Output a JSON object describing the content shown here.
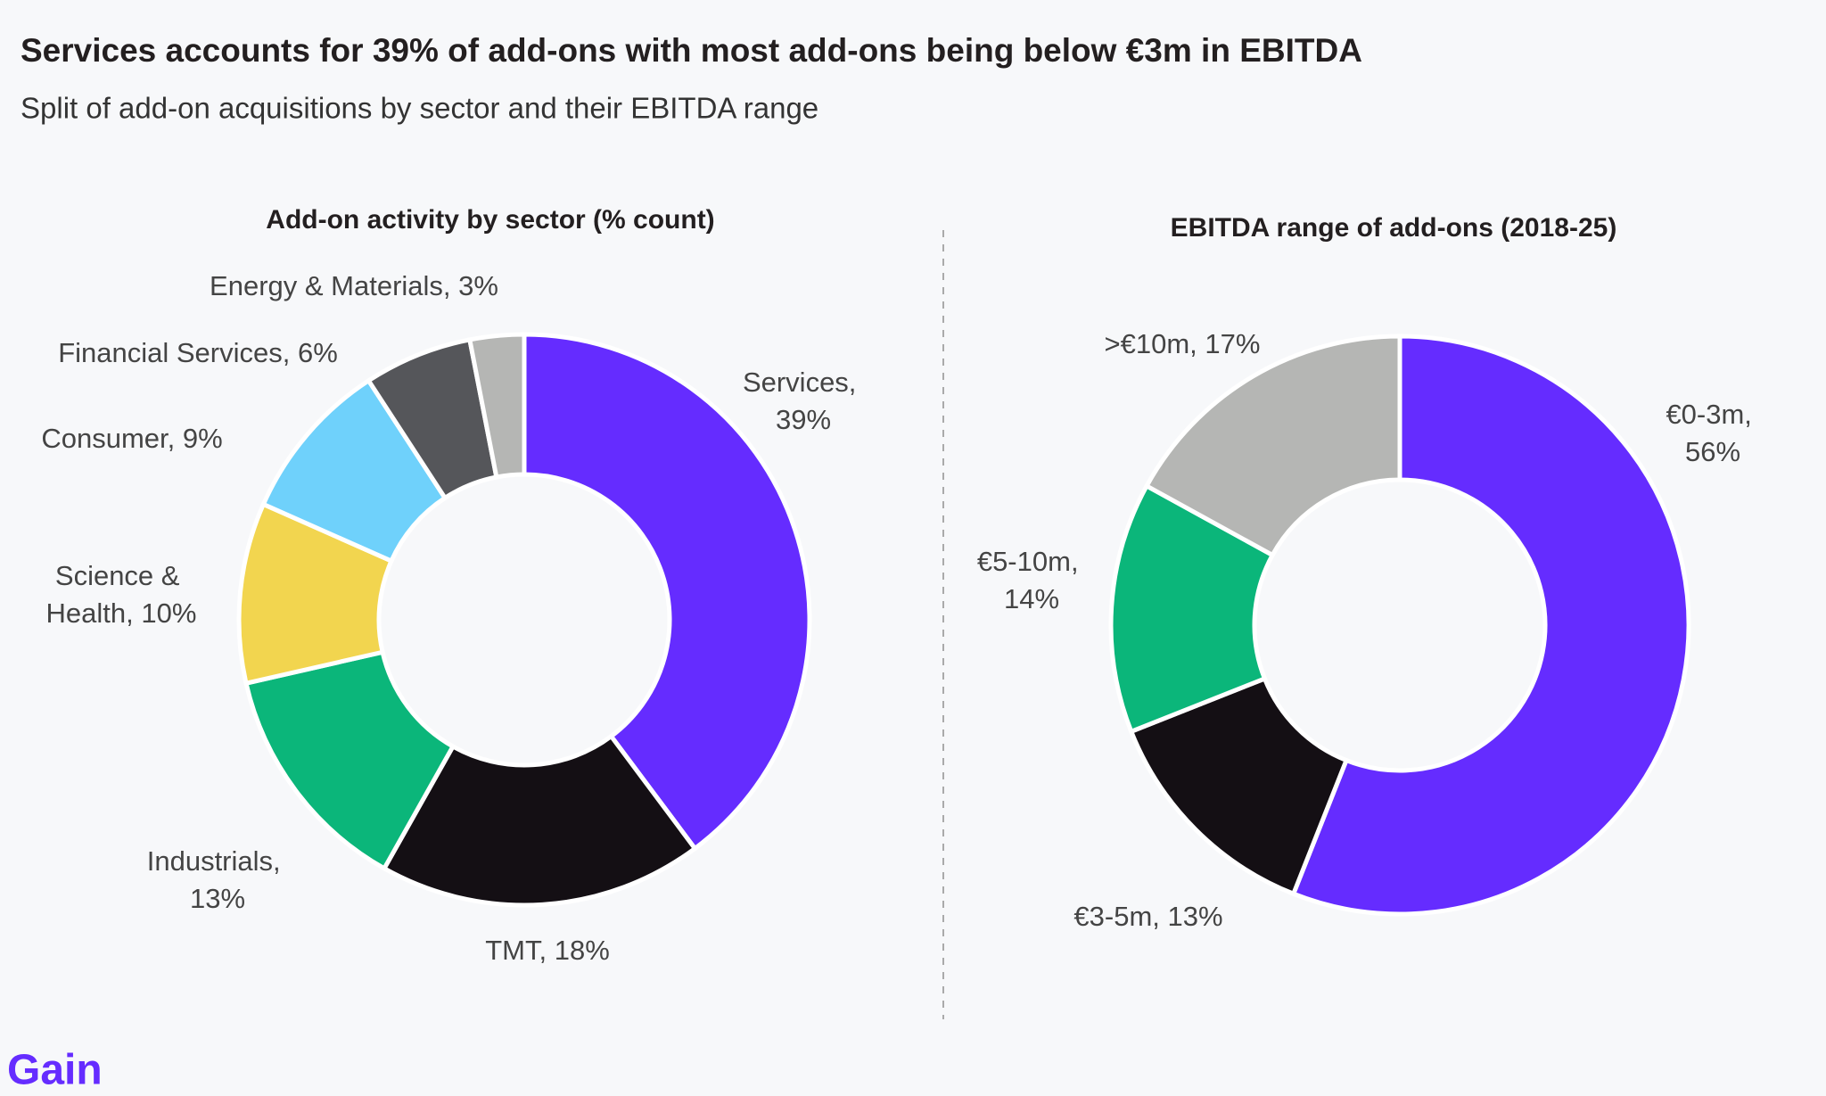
{
  "header": {
    "title": "Services accounts for 39% of add-ons with most add-ons being below €3m in EBITDA",
    "subtitle": "Split of add-on acquisitions by sector and their EBITDA range"
  },
  "chart_data": [
    {
      "type": "donut",
      "title": "Add-on activity by sector (% count)",
      "values": [
        39,
        18,
        13,
        10,
        9,
        6,
        3
      ],
      "value_labels": [
        "Services, 39%",
        "TMT, 18%",
        "Industrials, 13%",
        "Science & Health, 10%",
        "Consumer, 9%",
        "Financial Services, 6%",
        "Energy & Materials, 3%"
      ],
      "colors": [
        "#652cff",
        "#140f14",
        "#0bb67a",
        "#f2d54f",
        "#6fd1fb",
        "#55565a",
        "#b5b6b4"
      ]
    },
    {
      "type": "donut",
      "title": "EBITDA range of add-ons (2018-25)",
      "values": [
        56,
        13,
        14,
        17
      ],
      "value_labels": [
        "€0-3m, 56%",
        "€3-5m, 13%",
        "€5-10m, 14%",
        ">€10m, 17%"
      ],
      "colors": [
        "#652cff",
        "#140f14",
        "#0bb67a",
        "#b5b6b4"
      ]
    }
  ],
  "footer": {
    "logo": "Gain"
  }
}
